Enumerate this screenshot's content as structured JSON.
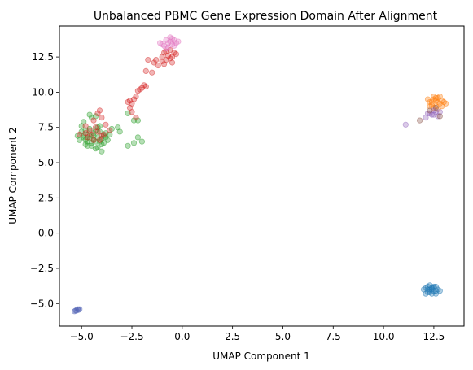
{
  "chart_data": {
    "type": "scatter",
    "title": "Unbalanced PBMC Gene Expression Domain After Alignment",
    "xlabel": "UMAP Component 1",
    "ylabel": "UMAP Component 2",
    "xlim": [
      -6.1,
      14.0
    ],
    "ylim": [
      -6.6,
      14.7
    ],
    "xticks": [
      -5.0,
      -2.5,
      0.0,
      2.5,
      5.0,
      7.5,
      10.0,
      12.5
    ],
    "xtick_labels": [
      "−5.0",
      "−2.5",
      "0.0",
      "2.5",
      "5.0",
      "7.5",
      "10.0",
      "12.5"
    ],
    "yticks": [
      -5.0,
      -2.5,
      0.0,
      2.5,
      5.0,
      7.5,
      10.0,
      12.5
    ],
    "ytick_labels": [
      "−5.0",
      "−2.5",
      "0.0",
      "2.5",
      "5.0",
      "7.5",
      "10.0",
      "12.5"
    ],
    "grid": false,
    "legend": "none",
    "point_alpha": 0.35,
    "series": [
      {
        "color": "#2ca02c",
        "points": [
          [
            -4.6,
            6.9
          ],
          [
            -4.4,
            7.1
          ],
          [
            -4.2,
            6.8
          ],
          [
            -4.8,
            6.6
          ],
          [
            -4.5,
            6.4
          ],
          [
            -4.0,
            6.7
          ],
          [
            -4.3,
            7.3
          ],
          [
            -4.7,
            7.0
          ],
          [
            -4.1,
            6.5
          ],
          [
            -3.9,
            6.9
          ],
          [
            -4.9,
            6.8
          ],
          [
            -4.4,
            6.6
          ],
          [
            -4.6,
            7.4
          ],
          [
            -4.2,
            7.5
          ],
          [
            -3.8,
            7.1
          ],
          [
            -5.0,
            7.2
          ],
          [
            -4.5,
            6.2
          ],
          [
            -4.3,
            6.0
          ],
          [
            -4.0,
            6.3
          ],
          [
            -4.8,
            6.3
          ],
          [
            -5.1,
            6.6
          ],
          [
            -5.2,
            6.9
          ],
          [
            -3.7,
            6.6
          ],
          [
            -3.6,
            7.0
          ],
          [
            -4.1,
            7.2
          ],
          [
            -4.6,
            6.7
          ],
          [
            -4.4,
            6.9
          ],
          [
            -4.3,
            6.5
          ],
          [
            -4.7,
            6.5
          ],
          [
            -3.9,
            6.4
          ],
          [
            -4.2,
            6.1
          ],
          [
            -4.0,
            5.8
          ],
          [
            -3.5,
            7.4
          ],
          [
            -5.0,
            7.6
          ],
          [
            -4.9,
            7.9
          ],
          [
            -4.5,
            8.2
          ],
          [
            -4.3,
            8.3
          ],
          [
            -4.6,
            8.4
          ],
          [
            -3.2,
            7.5
          ],
          [
            -4.8,
            7.3
          ],
          [
            -2.7,
            8.5
          ],
          [
            -2.4,
            8.0
          ],
          [
            -2.2,
            8.0
          ],
          [
            -2.7,
            6.2
          ],
          [
            -2.4,
            6.4
          ],
          [
            -2.2,
            6.8
          ],
          [
            -2.0,
            6.5
          ],
          [
            -3.1,
            7.2
          ],
          [
            -4.9,
            6.9
          ],
          [
            -4.7,
            6.2
          ],
          [
            -3.8,
            6.8
          ],
          [
            -4.1,
            7.6
          ]
        ]
      },
      {
        "color": "#d62728",
        "points": [
          [
            -4.5,
            7.0
          ],
          [
            -4.2,
            7.2
          ],
          [
            -4.0,
            6.9
          ],
          [
            -4.7,
            6.8
          ],
          [
            -4.4,
            6.6
          ],
          [
            -4.3,
            7.5
          ],
          [
            -4.6,
            7.3
          ],
          [
            -4.1,
            6.6
          ],
          [
            -3.9,
            7.0
          ],
          [
            -4.8,
            7.6
          ],
          [
            -4.2,
            8.5
          ],
          [
            -4.4,
            8.0
          ],
          [
            -4.1,
            8.7
          ],
          [
            -3.8,
            7.7
          ],
          [
            -4.0,
            8.2
          ],
          [
            -3.6,
            7.3
          ],
          [
            -5.1,
            7.0
          ],
          [
            -4.8,
            7.1
          ],
          [
            -2.6,
            9.4
          ],
          [
            -2.4,
            9.5
          ],
          [
            -2.5,
            9.2
          ],
          [
            -2.3,
            9.7
          ],
          [
            -2.7,
            9.3
          ],
          [
            -2.2,
            10.1
          ],
          [
            -2.0,
            10.3
          ],
          [
            -1.9,
            10.5
          ],
          [
            -2.1,
            10.2
          ],
          [
            -2.6,
            8.9
          ],
          [
            -2.5,
            8.6
          ],
          [
            -2.3,
            8.2
          ],
          [
            -1.8,
            10.4
          ],
          [
            -1.5,
            11.4
          ],
          [
            -1.4,
            12.1
          ],
          [
            -1.2,
            11.9
          ],
          [
            -1.0,
            12.5
          ],
          [
            -0.8,
            12.3
          ],
          [
            -0.6,
            12.4
          ],
          [
            -0.9,
            12.8
          ],
          [
            -0.7,
            12.6
          ],
          [
            -0.5,
            12.5
          ],
          [
            -1.0,
            12.2
          ],
          [
            -0.8,
            12.9
          ],
          [
            -0.4,
            12.8
          ],
          [
            -0.6,
            13.0
          ],
          [
            -1.3,
            12.3
          ],
          [
            -0.3,
            12.7
          ],
          [
            -0.9,
            12.0
          ],
          [
            -0.5,
            12.1
          ],
          [
            -1.7,
            12.3
          ],
          [
            -1.8,
            11.5
          ]
        ]
      },
      {
        "color": "#e377c2",
        "points": [
          [
            -0.9,
            13.3
          ],
          [
            -0.7,
            13.5
          ],
          [
            -0.5,
            13.4
          ],
          [
            -0.8,
            13.7
          ],
          [
            -0.6,
            13.6
          ],
          [
            -0.4,
            13.3
          ],
          [
            -1.0,
            13.4
          ],
          [
            -0.7,
            13.2
          ],
          [
            -0.5,
            13.8
          ],
          [
            -0.3,
            13.5
          ],
          [
            -0.8,
            13.1
          ],
          [
            -0.6,
            13.9
          ],
          [
            -0.4,
            13.7
          ],
          [
            -0.2,
            13.6
          ],
          [
            -1.1,
            13.5
          ]
        ]
      },
      {
        "color": "#ff7f0e",
        "points": [
          [
            12.3,
            9.3
          ],
          [
            12.5,
            9.5
          ],
          [
            12.7,
            9.3
          ],
          [
            12.9,
            9.4
          ],
          [
            12.4,
            9.1
          ],
          [
            12.6,
            9.0
          ],
          [
            12.8,
            9.2
          ],
          [
            13.0,
            9.3
          ],
          [
            12.2,
            9.5
          ],
          [
            12.5,
            9.7
          ],
          [
            12.7,
            9.6
          ],
          [
            12.4,
            9.3
          ],
          [
            12.6,
            9.4
          ],
          [
            12.8,
            9.7
          ],
          [
            13.1,
            9.2
          ],
          [
            12.3,
            9.0
          ],
          [
            12.5,
            8.9
          ],
          [
            12.7,
            8.8
          ],
          [
            12.9,
            9.0
          ],
          [
            12.6,
            9.6
          ]
        ]
      },
      {
        "color": "#9467bd",
        "points": [
          [
            11.1,
            7.7
          ],
          [
            12.1,
            8.2
          ],
          [
            12.3,
            8.5
          ],
          [
            12.5,
            8.7
          ],
          [
            12.4,
            8.4
          ],
          [
            12.6,
            8.6
          ],
          [
            12.7,
            8.3
          ],
          [
            12.2,
            8.5
          ],
          [
            12.8,
            8.6
          ],
          [
            12.5,
            8.4
          ]
        ]
      },
      {
        "color": "#8c564b",
        "points": [
          [
            11.8,
            8.0
          ],
          [
            12.3,
            8.7
          ],
          [
            12.6,
            8.9
          ],
          [
            12.8,
            8.3
          ]
        ]
      },
      {
        "color": "#1f77b4",
        "points": [
          [
            12.2,
            -4.0
          ],
          [
            12.4,
            -3.9
          ],
          [
            12.6,
            -4.1
          ],
          [
            12.3,
            -4.2
          ],
          [
            12.5,
            -3.8
          ],
          [
            12.1,
            -3.9
          ],
          [
            12.7,
            -4.0
          ],
          [
            12.4,
            -4.3
          ],
          [
            12.2,
            -4.2
          ],
          [
            12.6,
            -3.8
          ],
          [
            12.0,
            -4.0
          ],
          [
            12.5,
            -4.1
          ],
          [
            12.3,
            -3.7
          ],
          [
            12.8,
            -4.1
          ],
          [
            12.4,
            -4.0
          ],
          [
            12.1,
            -4.3
          ],
          [
            12.6,
            -4.3
          ],
          [
            12.3,
            -4.0
          ],
          [
            12.5,
            -3.9
          ],
          [
            12.2,
            -3.8
          ]
        ]
      },
      {
        "color": "#4e5fb4",
        "points": [
          [
            -5.3,
            -5.5
          ],
          [
            -5.2,
            -5.4
          ],
          [
            -5.1,
            -5.4
          ],
          [
            -5.35,
            -5.55
          ],
          [
            -5.25,
            -5.5
          ],
          [
            -5.15,
            -5.45
          ]
        ]
      }
    ]
  }
}
